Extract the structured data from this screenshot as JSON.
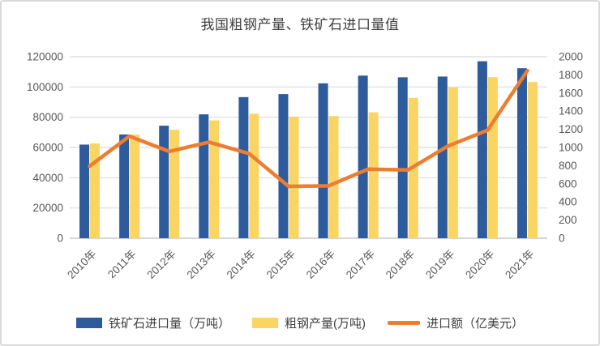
{
  "chart_data": {
    "type": "bar",
    "subtype": "bar-line-combo",
    "title": "我国粗钢产量、铁矿石进口量值",
    "categories": [
      "2010年",
      "2011年",
      "2012年",
      "2013年",
      "2014年",
      "2015年",
      "2016年",
      "2017年",
      "2018年",
      "2019年",
      "2020年",
      "2021年"
    ],
    "series": [
      {
        "name": "铁矿石进口量（万吨）",
        "type": "bar",
        "axis": "left",
        "color": "#2E5B9B",
        "values": [
          61900,
          68600,
          74400,
          81900,
          93300,
          95300,
          102400,
          107500,
          106400,
          106900,
          117000,
          112400
        ]
      },
      {
        "name": "粗钢产量(万吨)",
        "type": "bar",
        "axis": "left",
        "color": "#FBD563",
        "values": [
          62700,
          68500,
          71700,
          77900,
          82300,
          80400,
          80800,
          83200,
          92800,
          99600,
          106500,
          103300
        ]
      },
      {
        "name": "进口额（亿美元）",
        "type": "line",
        "axis": "right",
        "color": "#ED7D31",
        "values": [
          794,
          1124,
          956,
          1059,
          934,
          571,
          577,
          762,
          753,
          1015,
          1190,
          1847
        ]
      }
    ],
    "left_axis": {
      "min": 0,
      "max": 120000,
      "ticks": [
        0,
        20000,
        40000,
        60000,
        80000,
        100000,
        120000
      ]
    },
    "right_axis": {
      "min": 0,
      "max": 2000,
      "ticks": [
        0,
        200,
        400,
        600,
        800,
        1000,
        1200,
        1400,
        1600,
        1800,
        2000
      ]
    },
    "grid": true,
    "legend_position": "bottom",
    "colors": {
      "gridline": "#DCDCDC",
      "axis_line": "#C9C9C9",
      "axis_text": "#595959",
      "title_text": "#404040"
    }
  }
}
